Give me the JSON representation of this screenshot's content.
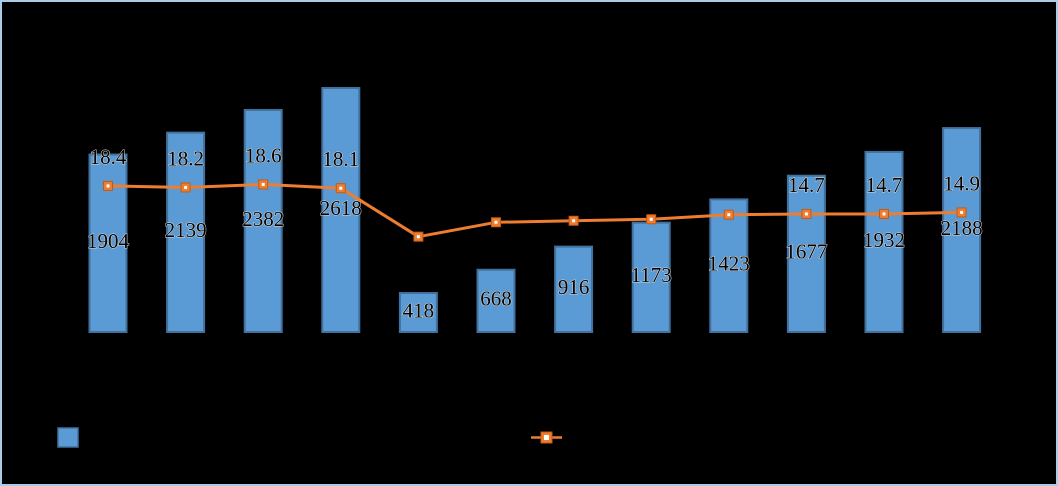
{
  "chart_data": {
    "type": "bar+line",
    "title": "",
    "xlabel": "",
    "ylabel": "",
    "axes_visible": false,
    "gridlines": false,
    "n_points": 12,
    "categories_visible": false,
    "bar_series": {
      "name": "bar-series",
      "values": [
        1904,
        2139,
        2382,
        2618,
        418,
        668,
        916,
        1173,
        1423,
        1677,
        1932,
        2188
      ],
      "labels_visible": [
        true,
        true,
        true,
        true,
        true,
        true,
        true,
        true,
        true,
        true,
        true,
        true
      ]
    },
    "line_series": {
      "name": "line-series",
      "values": [
        18.4,
        18.2,
        18.6,
        18.1,
        11.7,
        13.6,
        13.8,
        14.0,
        14.6,
        14.7,
        14.7,
        14.9
      ],
      "labels_visible": [
        true,
        true,
        true,
        true,
        false,
        false,
        false,
        false,
        false,
        true,
        true,
        true
      ],
      "visible_labels": [
        "18.4",
        "18.2",
        "18.6",
        "18.1",
        "14.7",
        "14.7",
        "14.9"
      ]
    },
    "legend": {
      "position": "bottom",
      "entries": [
        {
          "type": "bar-swatch"
        },
        {
          "type": "line-marker"
        }
      ]
    }
  },
  "colors": {
    "background": "#000000",
    "frame_border": "#A9CCE8",
    "bar_fill": "#5B9BD5",
    "bar_border": "#41719C",
    "line": "#ED7D31",
    "line_marker_border": "#C55A11",
    "marker_center": "#FFFFFF",
    "label_text": "#000000",
    "label_halo": "#D9D9D9"
  }
}
